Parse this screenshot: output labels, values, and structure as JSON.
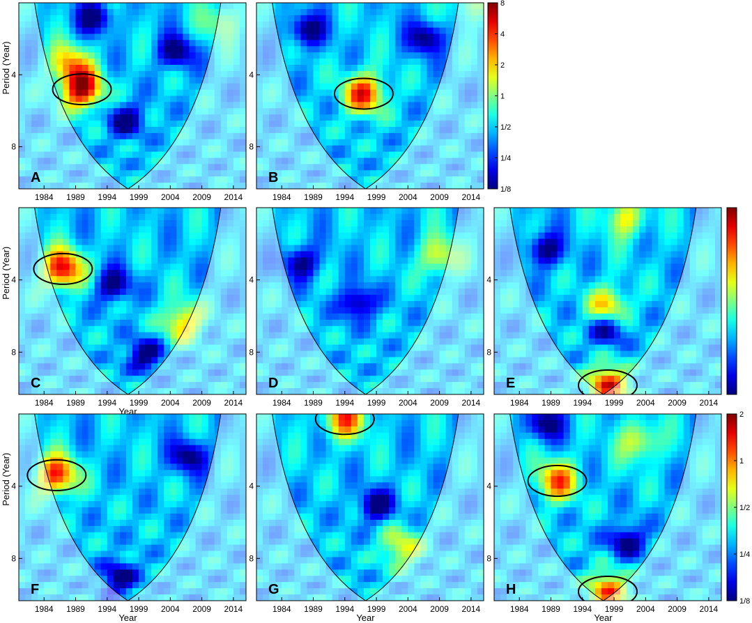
{
  "chart_data": {
    "type": "heatmap",
    "description_level": "wavelet power spectra with cone of influence and significance contours",
    "x_ticks": [
      "1984",
      "1989",
      "1994",
      "1999",
      "2004",
      "2009",
      "2014"
    ],
    "x_tick_values": [
      1984,
      1989,
      1994,
      1999,
      2004,
      2009,
      2014
    ],
    "y_ticks": [
      "4",
      "8"
    ],
    "y_tick_values": [
      4,
      8
    ],
    "xlim": [
      1980,
      2016
    ],
    "ylim_period": [
      2,
      12
    ],
    "xlabel": "Year",
    "ylabel": "Period (Year)",
    "colorbar_ticks": [
      "8",
      "4",
      "2",
      "1",
      "1/2",
      "1/4",
      "1/8"
    ],
    "colorbar_ticks_bottom": [
      "2",
      "1",
      "1/2",
      "1/4",
      "1/8"
    ],
    "panels": [
      {
        "label": "A",
        "hot_spots": [
          {
            "year": 1990,
            "period": 4.6,
            "power": 6
          },
          {
            "year": 1988,
            "period": 3.6,
            "power": 2
          },
          {
            "year": 2012,
            "period": 2.4,
            "power": 1
          }
        ],
        "cold_spots": [
          {
            "year": 1992,
            "period": 2.3
          },
          {
            "year": 2005,
            "period": 3.2
          },
          {
            "year": 1997,
            "period": 6.2
          }
        ]
      },
      {
        "label": "B",
        "hot_spots": [
          {
            "year": 1997,
            "period": 4.8,
            "power": 4
          },
          {
            "year": 2014,
            "period": 2.0,
            "power": 1
          }
        ],
        "cold_spots": [
          {
            "year": 1988,
            "period": 2.6
          },
          {
            "year": 2007,
            "period": 2.8
          }
        ]
      },
      {
        "label": "C",
        "hot_spots": [
          {
            "year": 1987,
            "period": 3.6,
            "power": 5
          },
          {
            "year": 2006,
            "period": 6.0,
            "power": 2
          }
        ],
        "cold_spots": [
          {
            "year": 1995,
            "period": 4.2
          },
          {
            "year": 2000,
            "period": 8.2
          }
        ]
      },
      {
        "label": "D",
        "hot_spots": [
          {
            "year": 2009,
            "period": 3.2,
            "power": 1.5
          }
        ],
        "cold_spots": [
          {
            "year": 1987,
            "period": 3.4
          },
          {
            "year": 1996,
            "period": 5.0
          }
        ]
      },
      {
        "label": "E",
        "hot_spots": [
          {
            "year": 2001,
            "period": 2.2,
            "power": 1.5
          },
          {
            "year": 1998,
            "period": 5.2,
            "power": 2
          },
          {
            "year": 1998,
            "period": 11.0,
            "power": 4
          }
        ],
        "cold_spots": [
          {
            "year": 1988,
            "period": 3.0
          },
          {
            "year": 1998,
            "period": 6.4
          }
        ]
      },
      {
        "label": "F",
        "hot_spots": [
          {
            "year": 1986,
            "period": 3.6,
            "power": 4
          }
        ],
        "cold_spots": [
          {
            "year": 2007,
            "period": 3.0
          },
          {
            "year": 1996,
            "period": 9.6
          }
        ]
      },
      {
        "label": "G",
        "hot_spots": [
          {
            "year": 1994,
            "period": 2.1,
            "power": 3
          },
          {
            "year": 2003,
            "period": 7.2,
            "power": 1.5
          }
        ],
        "cold_spots": [
          {
            "year": 1999,
            "period": 4.8
          }
        ]
      },
      {
        "label": "H",
        "hot_spots": [
          {
            "year": 1990,
            "period": 3.8,
            "power": 3
          },
          {
            "year": 2003,
            "period": 2.6,
            "power": 1.5
          },
          {
            "year": 1998,
            "period": 11.0,
            "power": 3
          }
        ],
        "cold_spots": [
          {
            "year": 2001,
            "period": 6.8
          },
          {
            "year": 1988,
            "period": 2.2
          }
        ]
      }
    ]
  }
}
